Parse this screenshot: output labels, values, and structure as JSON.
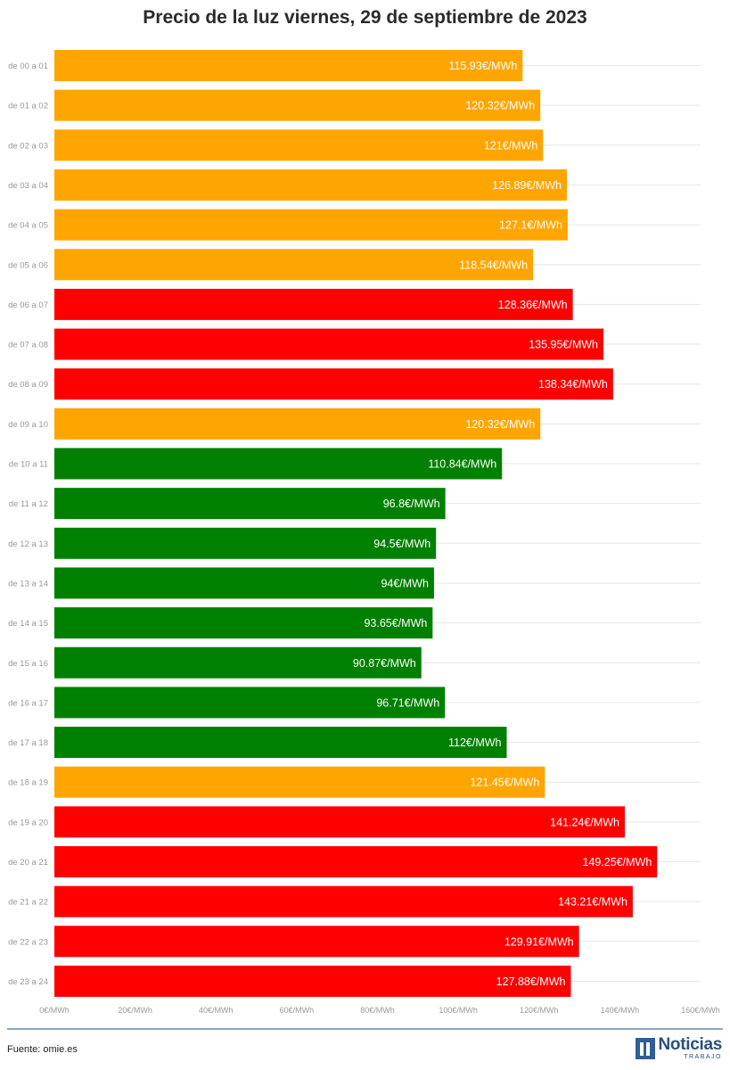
{
  "chart_data": {
    "type": "bar",
    "orientation": "horizontal",
    "title": "Precio de la luz viernes, 29 de septiembre de 2023",
    "xlim": [
      0,
      160
    ],
    "x_ticks": [
      "0€/MWh",
      "20€/MWh",
      "40€/MWh",
      "60€/MWh",
      "80€/MWh",
      "100€/MWh",
      "120€/MWh",
      "140€/MWh",
      "160€/MWh"
    ],
    "grid": true,
    "categories": [
      "de 00 a 01",
      "de 01 a 02",
      "de 02 a 03",
      "de 03 a 04",
      "de 04 a 05",
      "de 05 a 06",
      "de 06 a 07",
      "de 07 a 08",
      "de 08 a 09",
      "de 09 a 10",
      "de 10 a 11",
      "de 11 a 12",
      "de 12 a 13",
      "de 13 a 14",
      "de 14 a 15",
      "de 15 a 16",
      "de 16 a 17",
      "de 17 a 18",
      "de 18 a 19",
      "de 19 a 20",
      "de 20 a 21",
      "de 21 a 22",
      "de 22 a 23",
      "de 23 a 24"
    ],
    "values": [
      115.93,
      120.32,
      121,
      126.89,
      127.1,
      118.54,
      128.36,
      135.95,
      138.34,
      120.32,
      110.84,
      96.8,
      94.5,
      94,
      93.65,
      90.87,
      96.71,
      112,
      121.45,
      141.24,
      149.25,
      143.21,
      129.91,
      127.88
    ],
    "value_labels": [
      "115.93€/MWh",
      "120.32€/MWh",
      "121€/MWh",
      "126.89€/MWh",
      "127.1€/MWh",
      "118.54€/MWh",
      "128.36€/MWh",
      "135.95€/MWh",
      "138.34€/MWh",
      "120.32€/MWh",
      "110.84€/MWh",
      "96.8€/MWh",
      "94.5€/MWh",
      "94€/MWh",
      "93.65€/MWh",
      "90.87€/MWh",
      "96.71€/MWh",
      "112€/MWh",
      "121.45€/MWh",
      "141.24€/MWh",
      "149.25€/MWh",
      "143.21€/MWh",
      "129.91€/MWh",
      "127.88€/MWh"
    ],
    "bar_colors": [
      "#ffa500",
      "#ffa500",
      "#ffa500",
      "#ffa500",
      "#ffa500",
      "#ffa500",
      "#ff0000",
      "#ff0000",
      "#ff0000",
      "#ffa500",
      "#008000",
      "#008000",
      "#008000",
      "#008000",
      "#008000",
      "#008000",
      "#008000",
      "#008000",
      "#ffa500",
      "#ff0000",
      "#ff0000",
      "#ff0000",
      "#ff0000",
      "#ff0000"
    ]
  },
  "footer": {
    "source": "Fuente: omie.es",
    "logo_main": "Noticias",
    "logo_sub": "TRABAJO"
  },
  "colors": {
    "orange": "#ffa500",
    "red": "#ff0000",
    "green": "#008000",
    "gridline": "#e6e6e6",
    "axis_text": "#999999",
    "footer_rule": "#8fa3c4"
  }
}
